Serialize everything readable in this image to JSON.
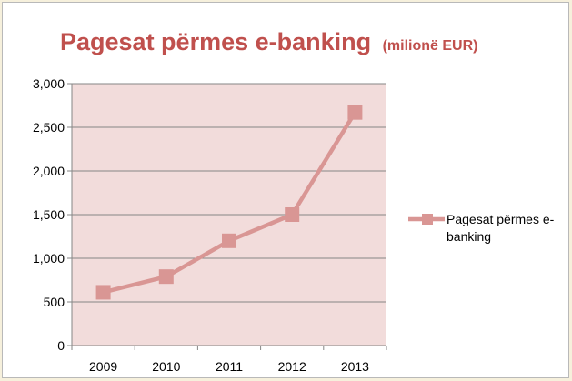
{
  "chart_data": {
    "type": "line",
    "title": "Pagesat përmes e-banking",
    "subtitle": "(milionë EUR)",
    "categories": [
      "2009",
      "2010",
      "2011",
      "2012",
      "2013"
    ],
    "series": [
      {
        "name": "Pagesat përmes e-banking",
        "values": [
          610,
          790,
          1200,
          1500,
          2670
        ],
        "color": "#d99694"
      }
    ],
    "y_ticks": [
      "0",
      "500",
      "1,000",
      "1,500",
      "2,000",
      "2,500",
      "3,000"
    ],
    "ylim": [
      0,
      3000
    ],
    "grid": true,
    "legend_position": "right",
    "legend_lines": [
      "Pagesat përmes e-",
      "banking"
    ],
    "colors": {
      "title": "#c0504d",
      "plot_background": "#f2dcdb",
      "gridline": "#868686",
      "series": "#d99694",
      "page_background": "#f6f0dc"
    }
  }
}
